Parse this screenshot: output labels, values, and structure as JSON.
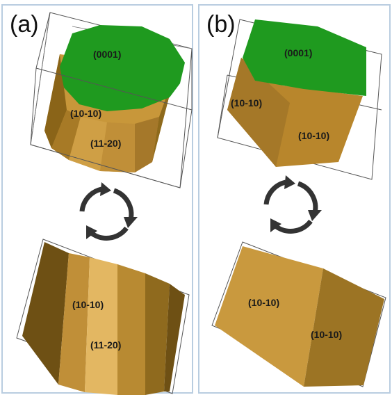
{
  "panels": {
    "a": {
      "label": "(a)",
      "top_labels": [
        "(0001)",
        "(10-10)",
        "(11-20)"
      ],
      "bottom_labels": [
        "(10-10)",
        "(11-20)"
      ]
    },
    "b": {
      "label": "(b)",
      "top_labels": [
        "(0001)",
        "(10-10)",
        "(10-10)"
      ],
      "bottom_labels": [
        "(10-10)",
        "(10-10)"
      ]
    }
  },
  "colors": {
    "top_face": "#1f9a1f",
    "side_face_light": "#d9ac52",
    "side_face_mid": "#b8862c",
    "side_face_dark": "#8a6418",
    "frame": "#cdd9e6",
    "arrows": "#333333"
  },
  "icons": [
    "rotation-arrows-icon"
  ]
}
